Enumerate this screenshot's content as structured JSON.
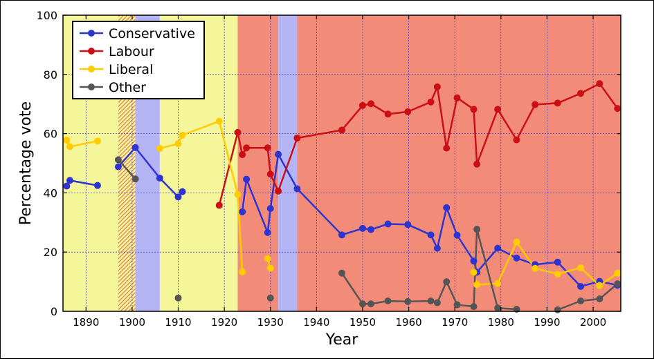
{
  "chart_data": {
    "type": "line",
    "xlabel": "Year",
    "ylabel": "Percentage vote",
    "xlim": [
      1885,
      2006
    ],
    "ylim": [
      0,
      100
    ],
    "x_ticks": [
      1890,
      1900,
      1910,
      1920,
      1930,
      1940,
      1950,
      1960,
      1970,
      1980,
      1990,
      2000
    ],
    "y_ticks": [
      0,
      20,
      40,
      60,
      80,
      100
    ],
    "grid": true,
    "legend_position": "top-left",
    "background_bands": [
      {
        "start": 1885,
        "end": 1897,
        "party": "Liberal",
        "color": "#f5f59a",
        "pattern": "solid"
      },
      {
        "start": 1897,
        "end": 1900.7,
        "party": "Labour",
        "color": "#e88060",
        "pattern": "hatched"
      },
      {
        "start": 1900.7,
        "end": 1906,
        "party": "Conservative",
        "color": "#b4b4f5",
        "pattern": "solid"
      },
      {
        "start": 1906,
        "end": 1922.9,
        "party": "Liberal",
        "color": "#f5f59a",
        "pattern": "solid"
      },
      {
        "start": 1922.9,
        "end": 1931.7,
        "party": "Labour",
        "color": "#f28c78",
        "pattern": "solid"
      },
      {
        "start": 1931.7,
        "end": 1935.8,
        "party": "Conservative",
        "color": "#b4b4f5",
        "pattern": "solid"
      },
      {
        "start": 1935.8,
        "end": 2006,
        "party": "Labour",
        "color": "#f28c78",
        "pattern": "solid"
      }
    ],
    "series": [
      {
        "name": "Conservative",
        "color": "#2e34d0",
        "segments": [
          [
            [
              1885.8,
              42.3
            ],
            [
              1886.5,
              44.2
            ],
            [
              1892.5,
              42.5
            ]
          ],
          [
            [
              1897,
              48.8
            ],
            [
              1900.7,
              55.3
            ],
            [
              1906,
              45.0
            ],
            [
              1910,
              38.6
            ],
            [
              1910.9,
              40.4
            ]
          ],
          [
            [
              1923.9,
              33.6
            ],
            [
              1924.8,
              44.6
            ],
            [
              1929.4,
              26.6
            ],
            [
              1930,
              34.7
            ],
            [
              1931.7,
              53.0
            ],
            [
              1935.8,
              41.4
            ],
            [
              1945.5,
              25.8
            ],
            [
              1950,
              28.0
            ],
            [
              1951.8,
              27.6
            ],
            [
              1955.5,
              29.5
            ],
            [
              1959.8,
              29.3
            ],
            [
              1964.8,
              25.8
            ],
            [
              1966.2,
              21.3
            ],
            [
              1968.2,
              35.0
            ],
            [
              1970.5,
              25.7
            ],
            [
              1974.1,
              17.0
            ],
            [
              1974.8,
              13.2
            ],
            [
              1979.3,
              21.3
            ],
            [
              1983.4,
              18.0
            ],
            [
              1987.4,
              15.8
            ],
            [
              1992.3,
              16.6
            ],
            [
              1997.3,
              8.4
            ],
            [
              2001.4,
              10.1
            ],
            [
              2005.3,
              8.8
            ]
          ]
        ]
      },
      {
        "name": "Labour",
        "color": "#cc0e16",
        "segments": [
          [
            [
              1918.9,
              35.8
            ],
            [
              1922.9,
              60.4
            ],
            [
              1923.9,
              52.9
            ],
            [
              1924.8,
              55.2
            ],
            [
              1929.4,
              55.2
            ],
            [
              1930,
              46.3
            ],
            [
              1931.7,
              40.6
            ],
            [
              1935.8,
              58.5
            ],
            [
              1945.5,
              61.2
            ],
            [
              1950,
              69.5
            ],
            [
              1951.8,
              70.1
            ],
            [
              1955.5,
              66.6
            ],
            [
              1959.8,
              67.4
            ],
            [
              1964.8,
              70.7
            ],
            [
              1966.2,
              75.8
            ],
            [
              1968.2,
              55.1
            ],
            [
              1970.5,
              72.1
            ],
            [
              1974.1,
              68.2
            ],
            [
              1974.8,
              49.7
            ],
            [
              1979.3,
              68.2
            ],
            [
              1983.4,
              57.9
            ],
            [
              1987.4,
              69.8
            ],
            [
              1992.3,
              70.3
            ],
            [
              1997.3,
              73.6
            ],
            [
              2001.4,
              76.9
            ],
            [
              2005.3,
              68.5
            ]
          ]
        ]
      },
      {
        "name": "Liberal",
        "color": "#ffcc00",
        "segments": [
          [
            [
              1885.8,
              57.8
            ],
            [
              1886.5,
              55.6
            ],
            [
              1892.5,
              57.5
            ]
          ],
          [
            [
              1906,
              55.0
            ],
            [
              1910,
              56.6
            ],
            [
              1910.9,
              59.5
            ],
            [
              1918.9,
              64.2
            ],
            [
              1922.9,
              39.5
            ],
            [
              1923.9,
              13.3
            ]
          ],
          [
            [
              1929.4,
              17.8
            ],
            [
              1930,
              14.6
            ]
          ],
          [
            [
              1974.1,
              13.2
            ],
            [
              1974.8,
              9.0
            ],
            [
              1979.3,
              9.4
            ],
            [
              1983.4,
              23.4
            ],
            [
              1987.4,
              14.5
            ],
            [
              1992.3,
              12.6
            ],
            [
              1997.3,
              14.7
            ],
            [
              2001.4,
              8.7
            ],
            [
              2005.3,
              12.9
            ]
          ]
        ]
      },
      {
        "name": "Other",
        "color": "#555555",
        "segments": [
          [
            [
              1897,
              51.2
            ],
            [
              1900.7,
              44.7
            ]
          ],
          [
            [
              1910,
              4.5
            ]
          ],
          [
            [
              1930,
              4.5
            ]
          ],
          [
            [
              1945.5,
              12.9
            ],
            [
              1950,
              2.5
            ],
            [
              1951.8,
              2.5
            ],
            [
              1955.5,
              3.5
            ],
            [
              1959.8,
              3.3
            ],
            [
              1964.8,
              3.5
            ],
            [
              1966.2,
              2.9
            ],
            [
              1968.2,
              10.0
            ],
            [
              1970.5,
              2.2
            ],
            [
              1974.1,
              1.6
            ],
            [
              1974.8,
              27.7
            ],
            [
              1979.3,
              1.1
            ],
            [
              1983.4,
              0.7
            ]
          ],
          [
            [
              1992.3,
              0.5
            ],
            [
              1997.3,
              3.5
            ],
            [
              2001.4,
              4.2
            ],
            [
              2005.3,
              9.3
            ]
          ]
        ]
      }
    ]
  }
}
